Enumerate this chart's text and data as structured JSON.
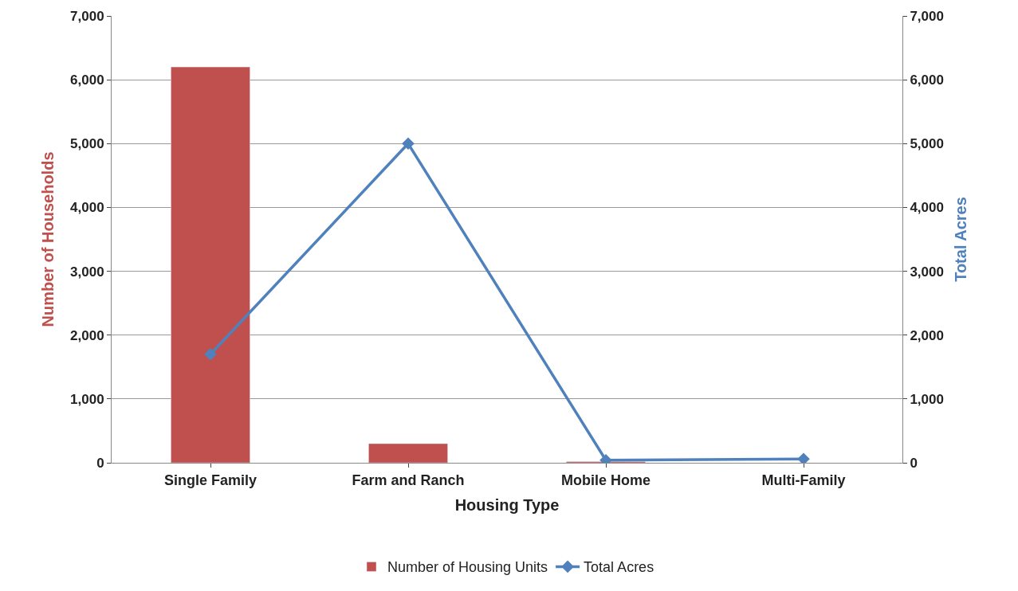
{
  "chart_data": {
    "type": "bar",
    "xlabel": "Housing Type",
    "ylabel": "Number of Households",
    "y2label": "Total Acres",
    "categories": [
      "Single Family",
      "Farm and Ranch",
      "Mobile Home",
      "Multi-Family"
    ],
    "series": [
      {
        "name": "Number of Housing Units",
        "color": "#c0504d",
        "values": [
          6200,
          300,
          20,
          null
        ]
      },
      {
        "name": "Total Acres",
        "type": "line",
        "axis": "y2",
        "color": "#4f81bd",
        "marker": "diamond",
        "values": [
          1700,
          5000,
          40,
          60
        ]
      }
    ],
    "ylim": [
      0,
      7000
    ],
    "yticks": [
      0,
      {
        "value": 1000,
        "label": "1,000"
      },
      {
        "value": 2000,
        "label": "2,000"
      },
      {
        "value": 3000,
        "label": "3,000"
      },
      {
        "value": 4000,
        "label": "4,000"
      },
      {
        "value": 5000,
        "label": "5,000"
      },
      {
        "value": 6000,
        "label": "6,000"
      },
      {
        "value": 7000,
        "label": "7,000"
      }
    ],
    "y2lim": [
      0,
      7000
    ],
    "y2ticks": [
      0,
      {
        "value": 1000,
        "label": "1,000"
      },
      {
        "value": 2000,
        "label": "2,000"
      },
      {
        "value": 3000,
        "label": "3,000"
      },
      {
        "value": 4000,
        "label": "4,000"
      },
      {
        "value": 5000,
        "label": "5,000"
      },
      {
        "value": 6000,
        "label": "6,000"
      },
      {
        "value": 7000,
        "label": "7,000"
      }
    ],
    "grid": "y",
    "legend": "bottom"
  }
}
